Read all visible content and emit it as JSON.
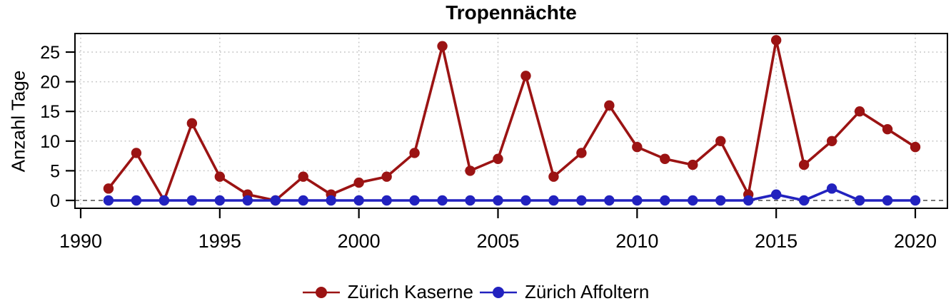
{
  "chart_data": {
    "type": "line",
    "title": "Tropennächte",
    "xlabel": "",
    "ylabel": "Anzahl Tage",
    "x": [
      1991,
      1992,
      1993,
      1994,
      1995,
      1996,
      1997,
      1998,
      1999,
      2000,
      2001,
      2002,
      2003,
      2004,
      2005,
      2006,
      2007,
      2008,
      2009,
      2010,
      2011,
      2012,
      2013,
      2014,
      2015,
      2016,
      2017,
      2018,
      2019,
      2020
    ],
    "series": [
      {
        "name": "Zürich Kaserne",
        "color": "#9b1313",
        "values": [
          2,
          8,
          0,
          13,
          4,
          1,
          0,
          4,
          1,
          3,
          4,
          8,
          26,
          5,
          7,
          21,
          4,
          8,
          16,
          9,
          7,
          6,
          10,
          1,
          27,
          6,
          10,
          15,
          12,
          9
        ]
      },
      {
        "name": "Zürich Affoltern",
        "color": "#2222bf",
        "values": [
          0,
          0,
          0,
          0,
          0,
          0,
          0,
          0,
          0,
          0,
          0,
          0,
          0,
          0,
          0,
          0,
          0,
          0,
          0,
          0,
          0,
          0,
          0,
          0,
          1,
          0,
          2,
          0,
          0,
          0
        ]
      }
    ],
    "xticks": [
      1990,
      1995,
      2000,
      2005,
      2010,
      2015,
      2020
    ],
    "yticks": [
      0,
      5,
      10,
      15,
      20,
      25
    ],
    "xlim": [
      1989.8,
      2021.1
    ],
    "ylim": [
      -1.3,
      28.1
    ],
    "grid": true,
    "grid_style": "dotted",
    "zero_line_style": "dashed",
    "legend_position": "bottom",
    "colors": {
      "axis": "#000000",
      "grid": "#c4c4c4",
      "zero_line": "#4a4a4a",
      "background": "#ffffff"
    }
  }
}
